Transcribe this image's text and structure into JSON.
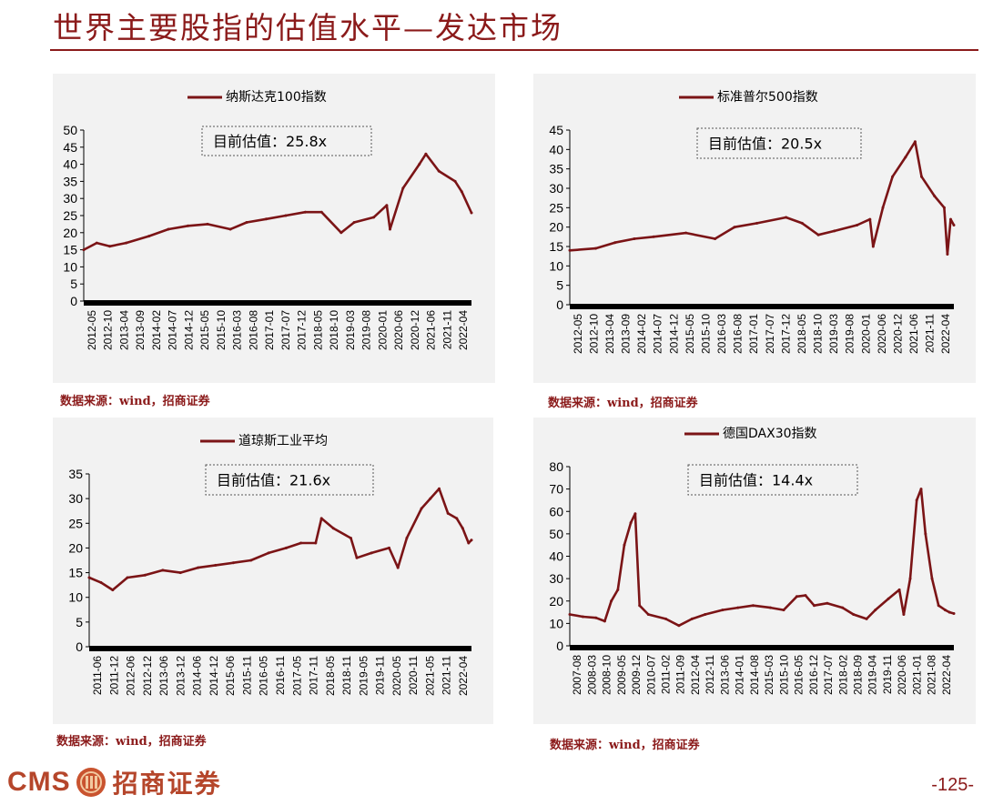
{
  "page_title": "世界主要股指的估值水平—发达市场",
  "page_number": "-125-",
  "footer": {
    "logo_text": "CMS",
    "company_name": "招商证券"
  },
  "colors": {
    "line": "#7b1416",
    "title": "#8b1a1a",
    "panel_bg": "#f2f2f2",
    "axis_bar": "#000000"
  },
  "chart_data": [
    {
      "type": "line",
      "legend": "纳斯达克100指数",
      "annotation": "目前估值：25.8x",
      "source": "数据来源：wind，招商证券",
      "ylim": [
        0,
        50
      ],
      "yticks": [
        0,
        5,
        10,
        15,
        20,
        25,
        30,
        35,
        40,
        45,
        50
      ],
      "xlim": [
        "2012-05",
        "2022-04"
      ],
      "xticks": [
        "2012-05",
        "2012-10",
        "2013-04",
        "2013-09",
        "2014-02",
        "2014-07",
        "2014-12",
        "2015-05",
        "2015-10",
        "2016-03",
        "2016-08",
        "2017-01",
        "2017-07",
        "2017-12",
        "2018-05",
        "2018-10",
        "2019-03",
        "2019-08",
        "2020-01",
        "2020-06",
        "2020-12",
        "2021-06",
        "2021-11",
        "2022-04"
      ],
      "points": [
        [
          "2012-05",
          15
        ],
        [
          "2012-09",
          17
        ],
        [
          "2013-01",
          16
        ],
        [
          "2013-06",
          17
        ],
        [
          "2014-01",
          19
        ],
        [
          "2014-07",
          21
        ],
        [
          "2015-01",
          22
        ],
        [
          "2015-07",
          22.5
        ],
        [
          "2016-02",
          21
        ],
        [
          "2016-07",
          23
        ],
        [
          "2017-01",
          24
        ],
        [
          "2017-07",
          25
        ],
        [
          "2018-01",
          26
        ],
        [
          "2018-06",
          26
        ],
        [
          "2018-12",
          20
        ],
        [
          "2019-04",
          23
        ],
        [
          "2019-10",
          24.5
        ],
        [
          "2020-02",
          28
        ],
        [
          "2020-03",
          21
        ],
        [
          "2020-07",
          33
        ],
        [
          "2020-12",
          40
        ],
        [
          "2021-02",
          43
        ],
        [
          "2021-06",
          38
        ],
        [
          "2021-11",
          35
        ],
        [
          "2022-01",
          32
        ],
        [
          "2022-04",
          25.8
        ]
      ]
    },
    {
      "type": "line",
      "legend": "标准普尔500指数",
      "annotation": "目前估值：20.5x",
      "source": "数据来源：wind，招商证券",
      "ylim": [
        0,
        45
      ],
      "yticks": [
        0,
        5,
        10,
        15,
        20,
        25,
        30,
        35,
        40,
        45
      ],
      "xlim": [
        "2012-05",
        "2022-04"
      ],
      "xticks": [
        "2012-05",
        "2012-10",
        "2013-04",
        "2013-09",
        "2014-02",
        "2014-07",
        "2014-12",
        "2015-05",
        "2015-10",
        "2016-03",
        "2016-08",
        "2017-01",
        "2017-07",
        "2017-12",
        "2018-05",
        "2018-10",
        "2019-03",
        "2019-08",
        "2020-01",
        "2020-06",
        "2020-12",
        "2021-06",
        "2021-11",
        "2022-04"
      ],
      "points": [
        [
          "2012-05",
          14
        ],
        [
          "2013-01",
          14.5
        ],
        [
          "2013-07",
          16
        ],
        [
          "2014-01",
          17
        ],
        [
          "2014-07",
          17.5
        ],
        [
          "2015-05",
          18.5
        ],
        [
          "2016-02",
          17
        ],
        [
          "2016-08",
          20
        ],
        [
          "2017-03",
          21
        ],
        [
          "2017-12",
          22.5
        ],
        [
          "2018-05",
          21
        ],
        [
          "2018-10",
          18
        ],
        [
          "2019-03",
          19
        ],
        [
          "2019-10",
          20.5
        ],
        [
          "2020-02",
          22
        ],
        [
          "2020-03",
          15
        ],
        [
          "2020-06",
          25
        ],
        [
          "2020-09",
          33
        ],
        [
          "2021-01",
          38
        ],
        [
          "2021-04",
          42
        ],
        [
          "2021-06",
          33
        ],
        [
          "2021-10",
          28
        ],
        [
          "2022-01",
          25
        ],
        [
          "2022-02",
          13
        ],
        [
          "2022-03",
          22
        ],
        [
          "2022-04",
          20.5
        ]
      ]
    },
    {
      "type": "line",
      "legend": "道琼斯工业平均",
      "annotation": "目前估值：21.6x",
      "source": "数据来源：wind，招商证券",
      "ylim": [
        0,
        35
      ],
      "yticks": [
        0,
        5,
        10,
        15,
        20,
        25,
        30,
        35
      ],
      "xlim": [
        "2011-06",
        "2022-04"
      ],
      "xticks": [
        "2011-06",
        "2011-12",
        "2012-06",
        "2012-12",
        "2013-06",
        "2013-12",
        "2014-06",
        "2014-12",
        "2015-06",
        "2015-11",
        "2016-05",
        "2016-11",
        "2017-05",
        "2017-11",
        "2018-05",
        "2018-11",
        "2019-05",
        "2019-11",
        "2020-05",
        "2020-11",
        "2021-05",
        "2021-11",
        "2022-04"
      ],
      "points": [
        [
          "2011-06",
          14
        ],
        [
          "2011-10",
          13
        ],
        [
          "2012-02",
          11.5
        ],
        [
          "2012-07",
          14
        ],
        [
          "2013-01",
          14.5
        ],
        [
          "2013-07",
          15.5
        ],
        [
          "2014-01",
          15
        ],
        [
          "2014-07",
          16
        ],
        [
          "2015-01",
          16.5
        ],
        [
          "2015-07",
          17
        ],
        [
          "2016-01",
          17.5
        ],
        [
          "2016-07",
          19
        ],
        [
          "2017-01",
          20
        ],
        [
          "2017-06",
          21
        ],
        [
          "2017-11",
          21
        ],
        [
          "2018-01",
          26
        ],
        [
          "2018-05",
          24
        ],
        [
          "2018-11",
          22
        ],
        [
          "2019-01",
          18
        ],
        [
          "2019-06",
          19
        ],
        [
          "2019-12",
          20
        ],
        [
          "2020-03",
          16
        ],
        [
          "2020-06",
          22
        ],
        [
          "2020-11",
          28
        ],
        [
          "2021-02",
          30
        ],
        [
          "2021-05",
          32
        ],
        [
          "2021-08",
          27
        ],
        [
          "2021-11",
          26
        ],
        [
          "2022-01",
          24
        ],
        [
          "2022-03",
          21
        ],
        [
          "2022-04",
          21.6
        ]
      ]
    },
    {
      "type": "line",
      "legend": "德国DAX30指数",
      "annotation": "目前估值：14.4x",
      "source": "数据来源：wind，招商证券",
      "ylim": [
        0,
        80
      ],
      "yticks": [
        0,
        10,
        20,
        30,
        40,
        50,
        60,
        70,
        80
      ],
      "xlim": [
        "2007-08",
        "2022-04"
      ],
      "xticks": [
        "2007-08",
        "2008-03",
        "2008-10",
        "2009-05",
        "2009-12",
        "2010-07",
        "2011-02",
        "2011-09",
        "2012-04",
        "2012-11",
        "2013-06",
        "2014-01",
        "2014-08",
        "2015-03",
        "2015-10",
        "2016-05",
        "2016-12",
        "2017-07",
        "2018-02",
        "2018-09",
        "2019-04",
        "2019-11",
        "2020-06",
        "2021-01",
        "2021-08",
        "2022-04"
      ],
      "points": [
        [
          "2007-08",
          14
        ],
        [
          "2008-02",
          13
        ],
        [
          "2008-08",
          12.5
        ],
        [
          "2008-12",
          11
        ],
        [
          "2009-03",
          20
        ],
        [
          "2009-06",
          25
        ],
        [
          "2009-09",
          45
        ],
        [
          "2009-12",
          55
        ],
        [
          "2010-02",
          59
        ],
        [
          "2010-04",
          18
        ],
        [
          "2010-08",
          14
        ],
        [
          "2011-04",
          12
        ],
        [
          "2011-10",
          9
        ],
        [
          "2012-04",
          12
        ],
        [
          "2012-10",
          14
        ],
        [
          "2013-06",
          16
        ],
        [
          "2014-01",
          17
        ],
        [
          "2014-08",
          18
        ],
        [
          "2015-04",
          17
        ],
        [
          "2015-10",
          16
        ],
        [
          "2016-04",
          22
        ],
        [
          "2016-08",
          22.5
        ],
        [
          "2016-12",
          18
        ],
        [
          "2017-06",
          19
        ],
        [
          "2018-01",
          17
        ],
        [
          "2018-06",
          14
        ],
        [
          "2018-12",
          12
        ],
        [
          "2019-04",
          16
        ],
        [
          "2019-10",
          21
        ],
        [
          "2020-03",
          25
        ],
        [
          "2020-05",
          14
        ],
        [
          "2020-08",
          30
        ],
        [
          "2020-11",
          65
        ],
        [
          "2021-01",
          70
        ],
        [
          "2021-03",
          50
        ],
        [
          "2021-06",
          30
        ],
        [
          "2021-09",
          18
        ],
        [
          "2021-12",
          16
        ],
        [
          "2022-02",
          15
        ],
        [
          "2022-04",
          14.4
        ]
      ]
    }
  ]
}
